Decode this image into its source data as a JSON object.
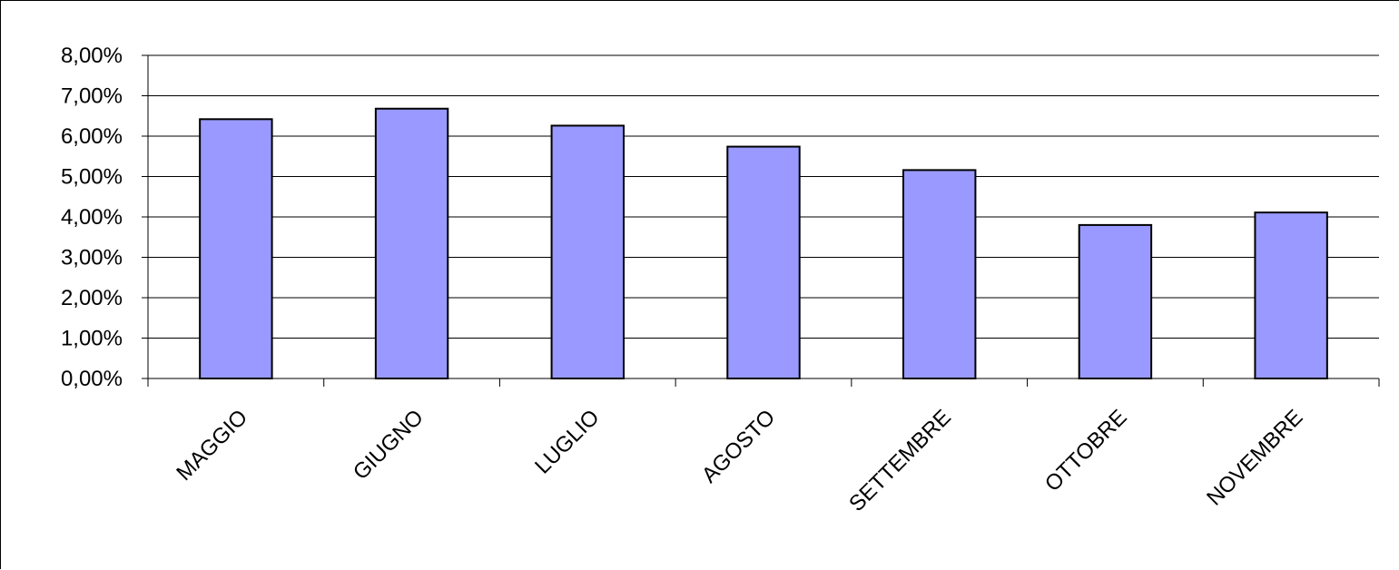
{
  "chart_data": {
    "type": "bar",
    "title": "",
    "xlabel": "",
    "ylabel": "",
    "categories": [
      "MAGGIO",
      "GIUGNO",
      "LUGLIO",
      "AGOSTO",
      "SETTEMBRE",
      "OTTOBRE",
      "NOVEMBRE"
    ],
    "values": [
      6.42,
      6.68,
      6.26,
      5.74,
      5.16,
      3.8,
      4.11
    ],
    "ylim": [
      0,
      8
    ],
    "yticks": [
      0,
      1,
      2,
      3,
      4,
      5,
      6,
      7,
      8
    ],
    "ytick_labels": [
      "0,00%",
      "1,00%",
      "2,00%",
      "3,00%",
      "4,00%",
      "5,00%",
      "6,00%",
      "7,00%",
      "8,00%"
    ],
    "grid": true,
    "legend": "none",
    "bar_color": "#9999ff",
    "bar_edge_color": "#000000"
  }
}
